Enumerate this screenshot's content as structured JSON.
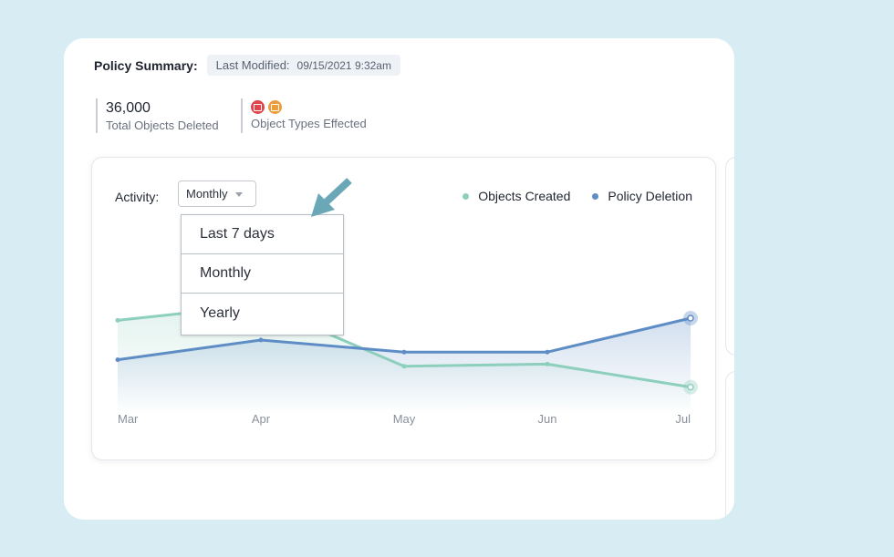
{
  "summary": {
    "label": "Policy Summary:",
    "modified_label": "Last Modified:",
    "modified_value": "09/15/2021 9:32am"
  },
  "stats": {
    "deleted_number": "36,000",
    "deleted_caption": "Total Objects Deleted",
    "types_caption": "Object Types Effected",
    "type_icons": [
      {
        "name": "calendar-icon",
        "color": "#e0454b"
      },
      {
        "name": "folder-icon",
        "color": "#eb9d3c"
      }
    ]
  },
  "activity": {
    "label": "Activity:",
    "selected": "Monthly",
    "options": [
      "Last 7 days",
      "Monthly",
      "Yearly"
    ]
  },
  "colors": {
    "objects_created": "#8dcfbd",
    "policy_deletion": "#5e8dc5",
    "arrow": "#6aa8b8"
  },
  "chart_data": {
    "type": "line",
    "categories": [
      "Mar",
      "Apr",
      "May",
      "Jun",
      "Jul"
    ],
    "series": [
      {
        "name": "Objects Created",
        "values": [
          0.68,
          0.82,
          0.26,
          0.28,
          0.07
        ]
      },
      {
        "name": "Policy Deletion",
        "values": [
          0.32,
          0.5,
          0.39,
          0.39,
          0.7
        ]
      }
    ],
    "ylim": [
      0,
      1
    ],
    "xlabel": "",
    "ylabel": "",
    "legend": "top-right",
    "grid": false
  }
}
